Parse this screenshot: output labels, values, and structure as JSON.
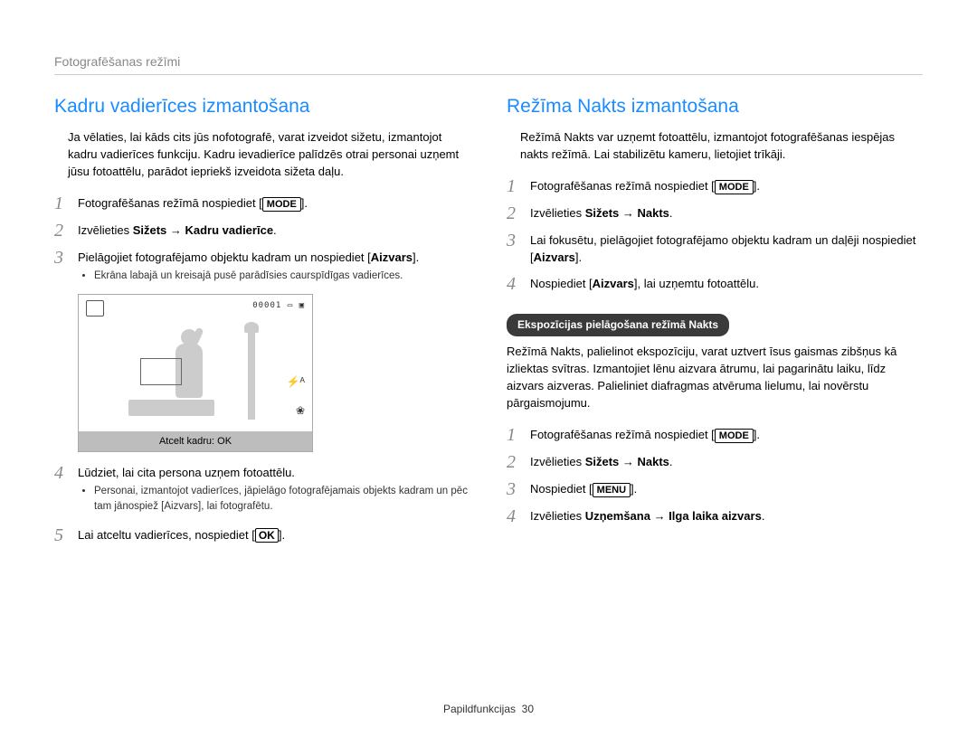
{
  "breadcrumb": "Fotografēšanas režīmi",
  "left": {
    "title": "Kadru vadierīces izmantošana",
    "intro": "Ja vēlaties, lai kāds cits jūs nofotografē, varat izveidot sižetu, izmantojot kadru vadierīces funkciju. Kadru ievadierīce palīdzēs otrai personai uzņemt jūsu fotoattēlu, parādot iepriekš izveidota sižeta daļu.",
    "step1_pre": "Fotografēšanas režīmā nospiediet [",
    "step1_btn": "MODE",
    "step1_post": "].",
    "step2_pre": "Izvēlieties ",
    "step2_bold": "Sižets → Kadru vadierīce",
    "step2_post": ".",
    "step3_line": "Pielāgojiet fotografējamo objektu kadram un nospiediet [",
    "step3_bold": "Aizvars",
    "step3_post": "].",
    "step3_bullet": "Ekrāna labajā un kreisajā pusē parādīsies caurspīdīgas vadierīces.",
    "screen_counter": "00001",
    "screen_bottom": "Atcelt kadru: OK",
    "step4": "Lūdziet, lai cita persona uzņem fotoattēlu.",
    "step4_bullet": "Personai, izmantojot vadierīces, jāpielāgo fotografējamais objekts kadram un pēc tam jānospiež [Aizvars], lai fotografētu.",
    "step5_pre": "Lai atceltu vadierīces, nospiediet [",
    "step5_btn": "OK",
    "step5_post": "]."
  },
  "right": {
    "title": "Režīma Nakts izmantošana",
    "intro": "Režīmā Nakts var uzņemt fotoattēlu, izmantojot fotografēšanas iespējas nakts režīmā. Lai stabilizētu kameru, lietojiet trīkāji.",
    "step1_pre": "Fotografēšanas režīmā nospiediet [",
    "step1_btn": "MODE",
    "step1_post": "].",
    "step2_pre": "Izvēlieties ",
    "step2_bold": "Sižets → Nakts",
    "step2_post": ".",
    "step3_line": "Lai fokusētu, pielāgojiet fotografējamo objektu kadram un daļēji nospiediet [",
    "step3_bold": "Aizvars",
    "step3_post": "].",
    "step4_pre": "Nospiediet [",
    "step4_bold": "Aizvars",
    "step4_post": "], lai uzņemtu fotoattēlu.",
    "pill": "Ekspozīcijas pielāgošana režīmā Nakts",
    "pill_intro": "Režīmā Nakts, palielinot ekspozīciju, varat uztvert īsus gaismas zibšņus kā izliektas svītras. Izmantojiet lēnu aizvara ātrumu, lai pagarinātu laiku, līdz aizvars aizveras. Palieliniet diafragmas atvēruma lielumu, lai novērstu pārgaismojumu.",
    "p1_pre": "Fotografēšanas režīmā nospiediet [",
    "p1_btn": "MODE",
    "p1_post": "].",
    "p2_pre": "Izvēlieties ",
    "p2_bold": "Sižets → Nakts",
    "p2_post": ".",
    "p3_pre": "Nospiediet [",
    "p3_btn": "MENU",
    "p3_post": "].",
    "p4_pre": "Izvēlieties ",
    "p4_bold": "Uzņemšana → Ilga laika aizvars",
    "p4_post": "."
  },
  "footer_label": "Papildfunkcijas",
  "footer_page": "30"
}
